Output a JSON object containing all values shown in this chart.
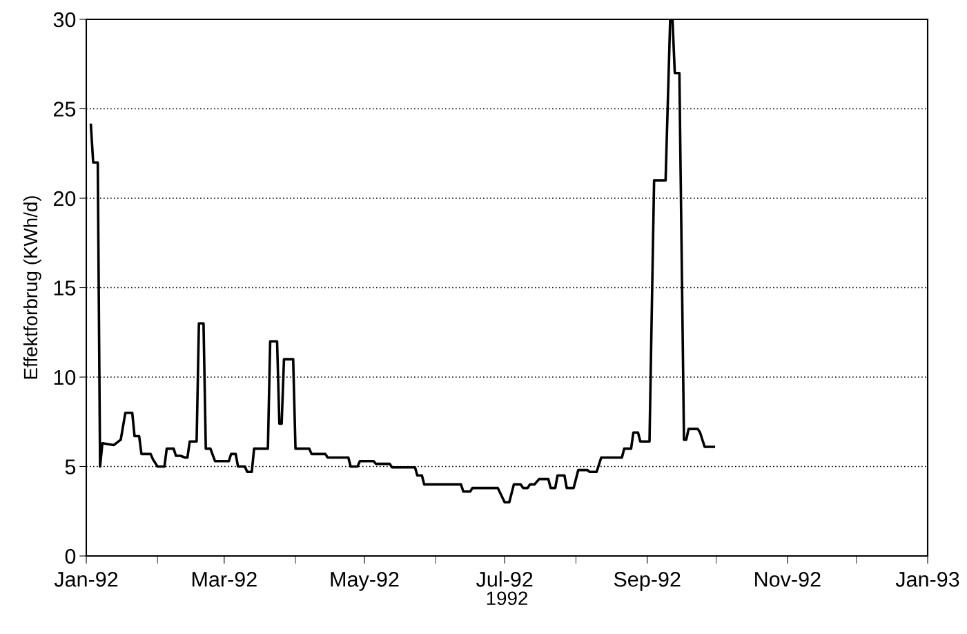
{
  "chart_data": {
    "type": "line",
    "xlabel": "1992",
    "ylabel": "Effektforbrug (KWh/d)",
    "x": [
      "1992-01-03",
      "1992-01-04",
      "1992-01-06",
      "1992-01-07",
      "1992-01-08",
      "1992-01-13",
      "1992-01-16",
      "1992-01-18",
      "1992-01-21",
      "1992-01-22",
      "1992-01-24",
      "1992-01-25",
      "1992-01-29",
      "1992-01-30",
      "1992-02-01",
      "1992-02-04",
      "1992-02-05",
      "1992-02-08",
      "1992-02-09",
      "1992-02-11",
      "1992-02-13",
      "1992-02-14",
      "1992-02-15",
      "1992-02-18",
      "1992-02-19",
      "1992-02-21",
      "1992-02-22",
      "1992-02-24",
      "1992-02-26",
      "1992-03-03",
      "1992-03-04",
      "1992-03-06",
      "1992-03-07",
      "1992-03-10",
      "1992-03-11",
      "1992-03-13",
      "1992-03-14",
      "1992-03-20",
      "1992-03-21",
      "1992-03-24",
      "1992-03-25",
      "1992-03-26",
      "1992-03-27",
      "1992-03-31",
      "1992-04-01",
      "1992-04-07",
      "1992-04-08",
      "1992-04-14",
      "1992-04-15",
      "1992-04-24",
      "1992-04-25",
      "1992-04-28",
      "1992-04-29",
      "1992-05-05",
      "1992-05-06",
      "1992-05-12",
      "1992-05-13",
      "1992-05-23",
      "1992-05-24",
      "1992-05-26",
      "1992-05-27",
      "1992-06-12",
      "1992-06-13",
      "1992-06-16",
      "1992-06-17",
      "1992-06-28",
      "1992-07-01",
      "1992-07-03",
      "1992-07-05",
      "1992-07-08",
      "1992-07-09",
      "1992-07-11",
      "1992-07-12",
      "1992-07-14",
      "1992-07-16",
      "1992-07-20",
      "1992-07-21",
      "1992-07-23",
      "1992-07-24",
      "1992-07-27",
      "1992-07-28",
      "1992-07-31",
      "1992-08-02",
      "1992-08-06",
      "1992-08-07",
      "1992-08-10",
      "1992-08-12",
      "1992-08-21",
      "1992-08-22",
      "1992-08-25",
      "1992-08-26",
      "1992-08-28",
      "1992-08-29",
      "1992-09-02",
      "1992-09-04",
      "1992-09-09",
      "1992-09-11",
      "1992-09-12",
      "1992-09-13",
      "1992-09-15",
      "1992-09-17",
      "1992-09-18",
      "1992-09-19",
      "1992-09-23",
      "1992-09-24",
      "1992-09-26",
      "1992-09-30"
    ],
    "series": [
      {
        "color": "#000000",
        "values": [
          24.1,
          22,
          22,
          5,
          6.3,
          6.2,
          6.5,
          8,
          8,
          6.7,
          6.7,
          5.7,
          5.7,
          5.4,
          5.0,
          5.0,
          6.0,
          6.0,
          5.6,
          5.6,
          5.5,
          5.5,
          6.4,
          6.4,
          13,
          13,
          6.0,
          6.0,
          5.3,
          5.3,
          5.7,
          5.7,
          5.0,
          5.0,
          4.7,
          4.7,
          6.0,
          6.0,
          12,
          12,
          7.4,
          7.4,
          11,
          11,
          6.0,
          6.0,
          5.7,
          5.7,
          5.5,
          5.5,
          5.0,
          5.0,
          5.3,
          5.3,
          5.15,
          5.15,
          4.95,
          4.95,
          4.5,
          4.5,
          4.0,
          4.0,
          3.6,
          3.6,
          3.8,
          3.8,
          3.0,
          3.0,
          4.0,
          4.0,
          3.8,
          3.8,
          4.0,
          4.0,
          4.3,
          4.3,
          3.8,
          3.8,
          4.5,
          4.5,
          3.8,
          3.8,
          4.8,
          4.8,
          4.7,
          4.7,
          5.5,
          5.5,
          6.0,
          6.0,
          6.9,
          6.9,
          6.4,
          6.4,
          21,
          21,
          30,
          30,
          27,
          27,
          6.5,
          6.5,
          7.1,
          7.1,
          6.9,
          6.1,
          6.1
        ]
      }
    ],
    "xlim": [
      "1992-01-01",
      "1993-01-01"
    ],
    "xticks": [
      {
        "value": "1992-01-01",
        "label": "Jan-92"
      },
      {
        "value": "1992-02-01",
        "label": null
      },
      {
        "value": "1992-03-01",
        "label": "Mar-92"
      },
      {
        "value": "1992-04-01",
        "label": null
      },
      {
        "value": "1992-05-01",
        "label": "May-92"
      },
      {
        "value": "1992-06-01",
        "label": null
      },
      {
        "value": "1992-07-01",
        "label": "Jul-92"
      },
      {
        "value": "1992-08-01",
        "label": null
      },
      {
        "value": "1992-09-01",
        "label": "Sep-92"
      },
      {
        "value": "1992-10-01",
        "label": null
      },
      {
        "value": "1992-11-01",
        "label": "Nov-92"
      },
      {
        "value": "1992-12-01",
        "label": null
      },
      {
        "value": "1993-01-01",
        "label": "Jan-93"
      }
    ],
    "ylim": [
      0,
      30
    ],
    "yticks": [
      0,
      5,
      10,
      15,
      20,
      25,
      30
    ],
    "grid": "y",
    "marker": "none",
    "line_style": "solid"
  }
}
